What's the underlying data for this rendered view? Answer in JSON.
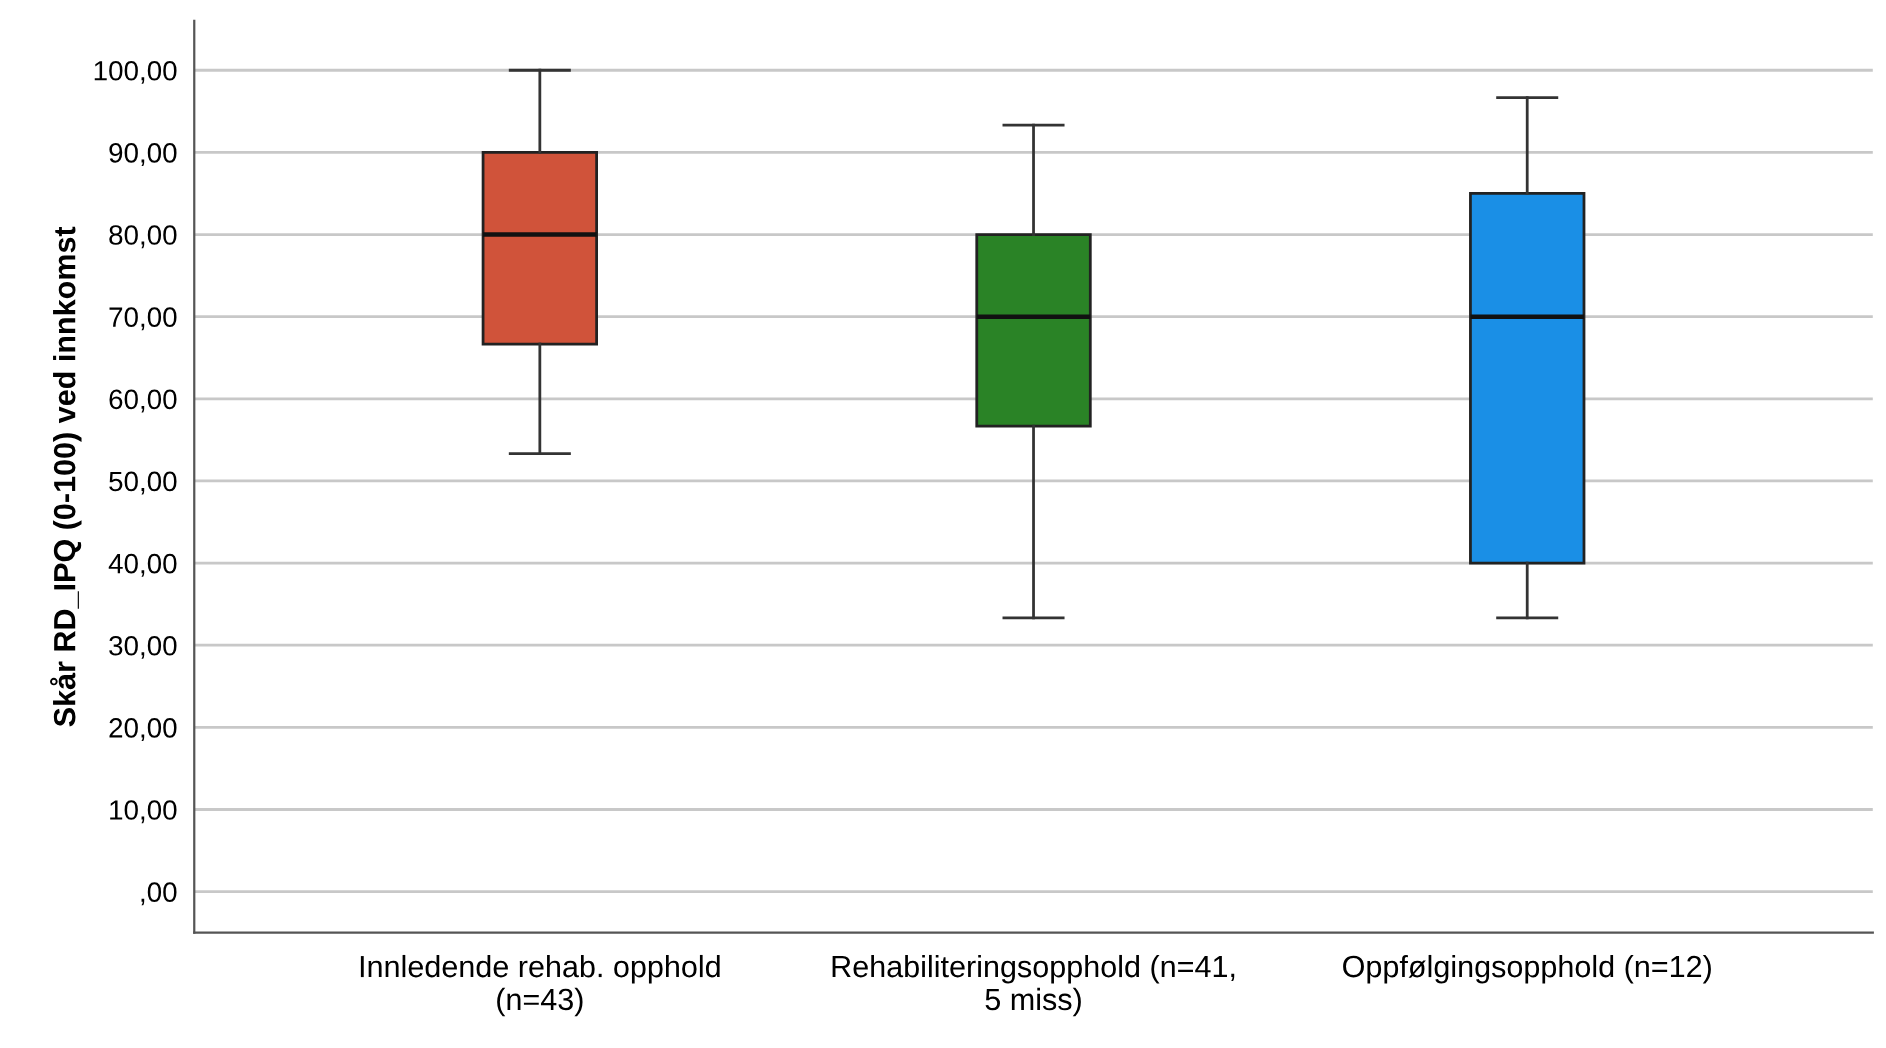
{
  "chart_data": {
    "type": "box",
    "ylabel": "Skår RD_IPQ (0-100) ved innkomst",
    "categories": [
      "Innledende rehab. opphold\n(n=43)",
      "Rehabiliteringsopphold (n=41,\n5 miss)",
      "Oppfølgingsopphold (n=12)"
    ],
    "colors": [
      "#d0533a",
      "#2a8326",
      "#1a8fe6"
    ],
    "boxes": [
      {
        "low": 53.33,
        "q1": 66.67,
        "median": 80,
        "q3": 90,
        "high": 100
      },
      {
        "low": 33.33,
        "q1": 56.67,
        "median": 70,
        "q3": 80,
        "high": 93.33
      },
      {
        "low": 33.33,
        "q1": 40,
        "median": 70,
        "q3": 85,
        "high": 96.67
      }
    ],
    "ylim": [
      -5,
      106
    ],
    "yticks": [
      {
        "value": 0,
        "label": ",00"
      },
      {
        "value": 10,
        "label": "10,00"
      },
      {
        "value": 20,
        "label": "20,00"
      },
      {
        "value": 30,
        "label": "30,00"
      },
      {
        "value": 40,
        "label": "40,00"
      },
      {
        "value": 50,
        "label": "50,00"
      },
      {
        "value": 60,
        "label": "60,00"
      },
      {
        "value": 70,
        "label": "70,00"
      },
      {
        "value": 80,
        "label": "80,00"
      },
      {
        "value": 90,
        "label": "90,00"
      },
      {
        "value": 100,
        "label": "100,00"
      }
    ],
    "grid": "y"
  }
}
